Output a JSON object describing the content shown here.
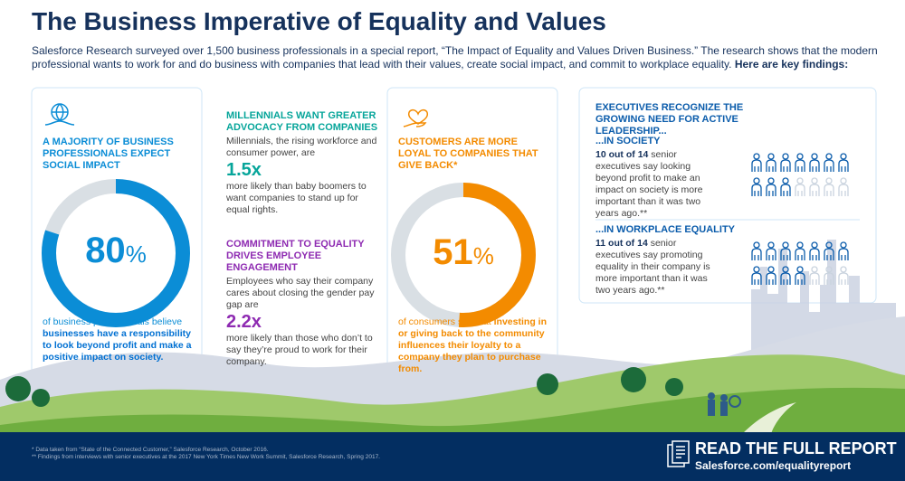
{
  "header": {
    "title": "The Business Imperative of Equality and Values",
    "intro": "Salesforce Research surveyed over 1,500 business professionals in a special report, “The Impact of Equality and Values Driven Business.” The research shows that the modern professional wants to work for and do business with companies that lead with their values, create social impact, and commit to workplace equality.",
    "intro_bold": "Here are key findings:"
  },
  "impact": {
    "heading": "A MAJORITY OF BUSINESS PROFESSIONALS EXPECT SOCIAL IMPACT",
    "value": 80,
    "unit": "%",
    "text": "of business professionals believe",
    "bold": "businesses have a responsibility to look beyond profit and make a positive impact on society."
  },
  "millennials": {
    "heading": "MILLENNIALS WANT GREATER ADVOCACY FROM COMPANIES",
    "text": "Millennials, the rising workforce and consumer power, are",
    "figure": "1.5x",
    "after": "more likely than baby boomers to want companies to stand up for equal rights."
  },
  "engagement": {
    "heading": "COMMITMENT TO EQUALITY DRIVES EMPLOYEE ENGAGEMENT",
    "text": "Employees who say their company cares about closing the gender pay gap are",
    "figure": "2.2x",
    "after": "more likely than those who don’t to say they’re proud to work for their company."
  },
  "customers": {
    "heading": "CUSTOMERS ARE MORE LOYAL TO COMPANIES THAT GIVE BACK*",
    "value": 51,
    "unit": "%",
    "text": "of consumers say that",
    "bold": "investing in or giving back to the community influences their loyalty to a company they plan to purchase from."
  },
  "executives": {
    "heading": "EXECUTIVES RECOGNIZE THE GROWING NEED FOR ACTIVE LEADERSHIP...",
    "items": [
      {
        "label": "...IN SOCIETY",
        "count": 10,
        "of": "out of",
        "total": 14,
        "text": "senior executives say looking beyond profit to make an impact on society is more important than it was two years ago.**"
      },
      {
        "label": "...IN WORKPLACE EQUALITY",
        "count": 11,
        "of": "out of",
        "total": 14,
        "text": "senior executives say promoting equality in their company is more important than it was two years ago.**"
      }
    ]
  },
  "footer": {
    "notes": [
      "* Data taken from “State of the Connected Customer,” Salesforce Research, October 2016.",
      "** Findings from interviews with senior executives at the 2017 New York Times New Work Summit, Salesforce Research, Spring 2017."
    ],
    "cta": "READ THE FULL REPORT",
    "link": "Salesforce.com/equalityreport"
  }
}
